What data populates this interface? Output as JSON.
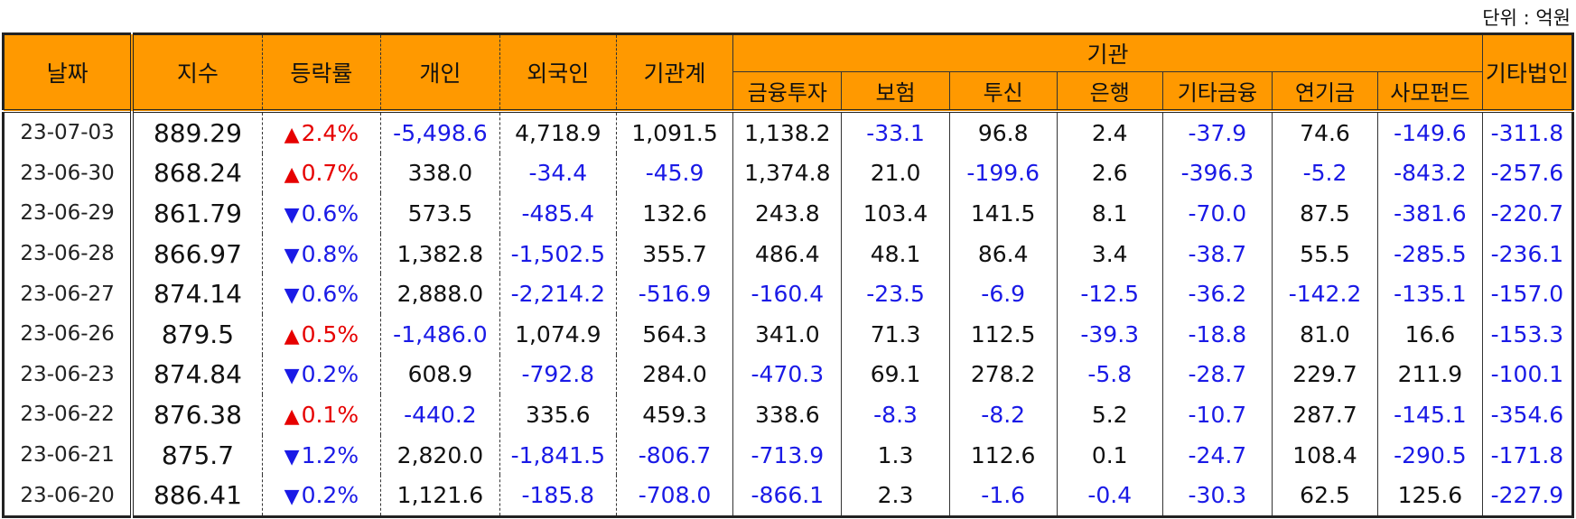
{
  "unit_label": "단위 : 억원",
  "headers": {
    "date": "날짜",
    "index": "지수",
    "change": "등락률",
    "individual": "개인",
    "foreign": "외국인",
    "inst_total": "기관계",
    "institution": "기관",
    "financial": "금융투자",
    "insurance": "보험",
    "trust": "투신",
    "bank": "은행",
    "other_fin": "기타금융",
    "pension": "연기금",
    "private_fund": "사모펀드",
    "other_corp": "기타법인"
  },
  "rows": [
    {
      "date": "23-07-03",
      "index": "889.29",
      "dir": "up",
      "change": "2.4%",
      "vals": [
        "-5,498.6",
        "4,718.9",
        "1,091.5",
        "1,138.2",
        "-33.1",
        "96.8",
        "2.4",
        "-37.9",
        "74.6",
        "-149.6",
        "-311.8"
      ]
    },
    {
      "date": "23-06-30",
      "index": "868.24",
      "dir": "up",
      "change": "0.7%",
      "vals": [
        "338.0",
        "-34.4",
        "-45.9",
        "1,374.8",
        "21.0",
        "-199.6",
        "2.6",
        "-396.3",
        "-5.2",
        "-843.2",
        "-257.6"
      ]
    },
    {
      "date": "23-06-29",
      "index": "861.79",
      "dir": "down",
      "change": "0.6%",
      "vals": [
        "573.5",
        "-485.4",
        "132.6",
        "243.8",
        "103.4",
        "141.5",
        "8.1",
        "-70.0",
        "87.5",
        "-381.6",
        "-220.7"
      ]
    },
    {
      "date": "23-06-28",
      "index": "866.97",
      "dir": "down",
      "change": "0.8%",
      "vals": [
        "1,382.8",
        "-1,502.5",
        "355.7",
        "486.4",
        "48.1",
        "86.4",
        "3.4",
        "-38.7",
        "55.5",
        "-285.5",
        "-236.1"
      ]
    },
    {
      "date": "23-06-27",
      "index": "874.14",
      "dir": "down",
      "change": "0.6%",
      "vals": [
        "2,888.0",
        "-2,214.2",
        "-516.9",
        "-160.4",
        "-23.5",
        "-6.9",
        "-12.5",
        "-36.2",
        "-142.2",
        "-135.1",
        "-157.0"
      ]
    },
    {
      "date": "23-06-26",
      "index": "879.5",
      "dir": "up",
      "change": "0.5%",
      "vals": [
        "-1,486.0",
        "1,074.9",
        "564.3",
        "341.0",
        "71.3",
        "112.5",
        "-39.3",
        "-18.8",
        "81.0",
        "16.6",
        "-153.3"
      ]
    },
    {
      "date": "23-06-23",
      "index": "874.84",
      "dir": "down",
      "change": "0.2%",
      "vals": [
        "608.9",
        "-792.8",
        "284.0",
        "-470.3",
        "69.1",
        "278.2",
        "-5.8",
        "-28.7",
        "229.7",
        "211.9",
        "-100.1"
      ]
    },
    {
      "date": "23-06-22",
      "index": "876.38",
      "dir": "up",
      "change": "0.1%",
      "vals": [
        "-440.2",
        "335.6",
        "459.3",
        "338.6",
        "-8.3",
        "-8.2",
        "5.2",
        "-10.7",
        "287.7",
        "-145.1",
        "-354.6"
      ]
    },
    {
      "date": "23-06-21",
      "index": "875.7",
      "dir": "down",
      "change": "1.2%",
      "vals": [
        "2,820.0",
        "-1,841.5",
        "-806.7",
        "-713.9",
        "1.3",
        "112.6",
        "0.1",
        "-24.7",
        "108.4",
        "-290.5",
        "-171.8"
      ]
    },
    {
      "date": "23-06-20",
      "index": "886.41",
      "dir": "down",
      "change": "0.2%",
      "vals": [
        "1,121.6",
        "-185.8",
        "-708.0",
        "-866.1",
        "2.3",
        "-1.6",
        "-0.4",
        "-30.3",
        "62.5",
        "125.6",
        "-227.9"
      ]
    }
  ],
  "symbols": {
    "up": "▲",
    "down": "▼"
  },
  "colors": {
    "header_bg": "#ff9900",
    "negative": "#1a1ae6",
    "up": "#e60000",
    "down": "#1a1ae6"
  }
}
